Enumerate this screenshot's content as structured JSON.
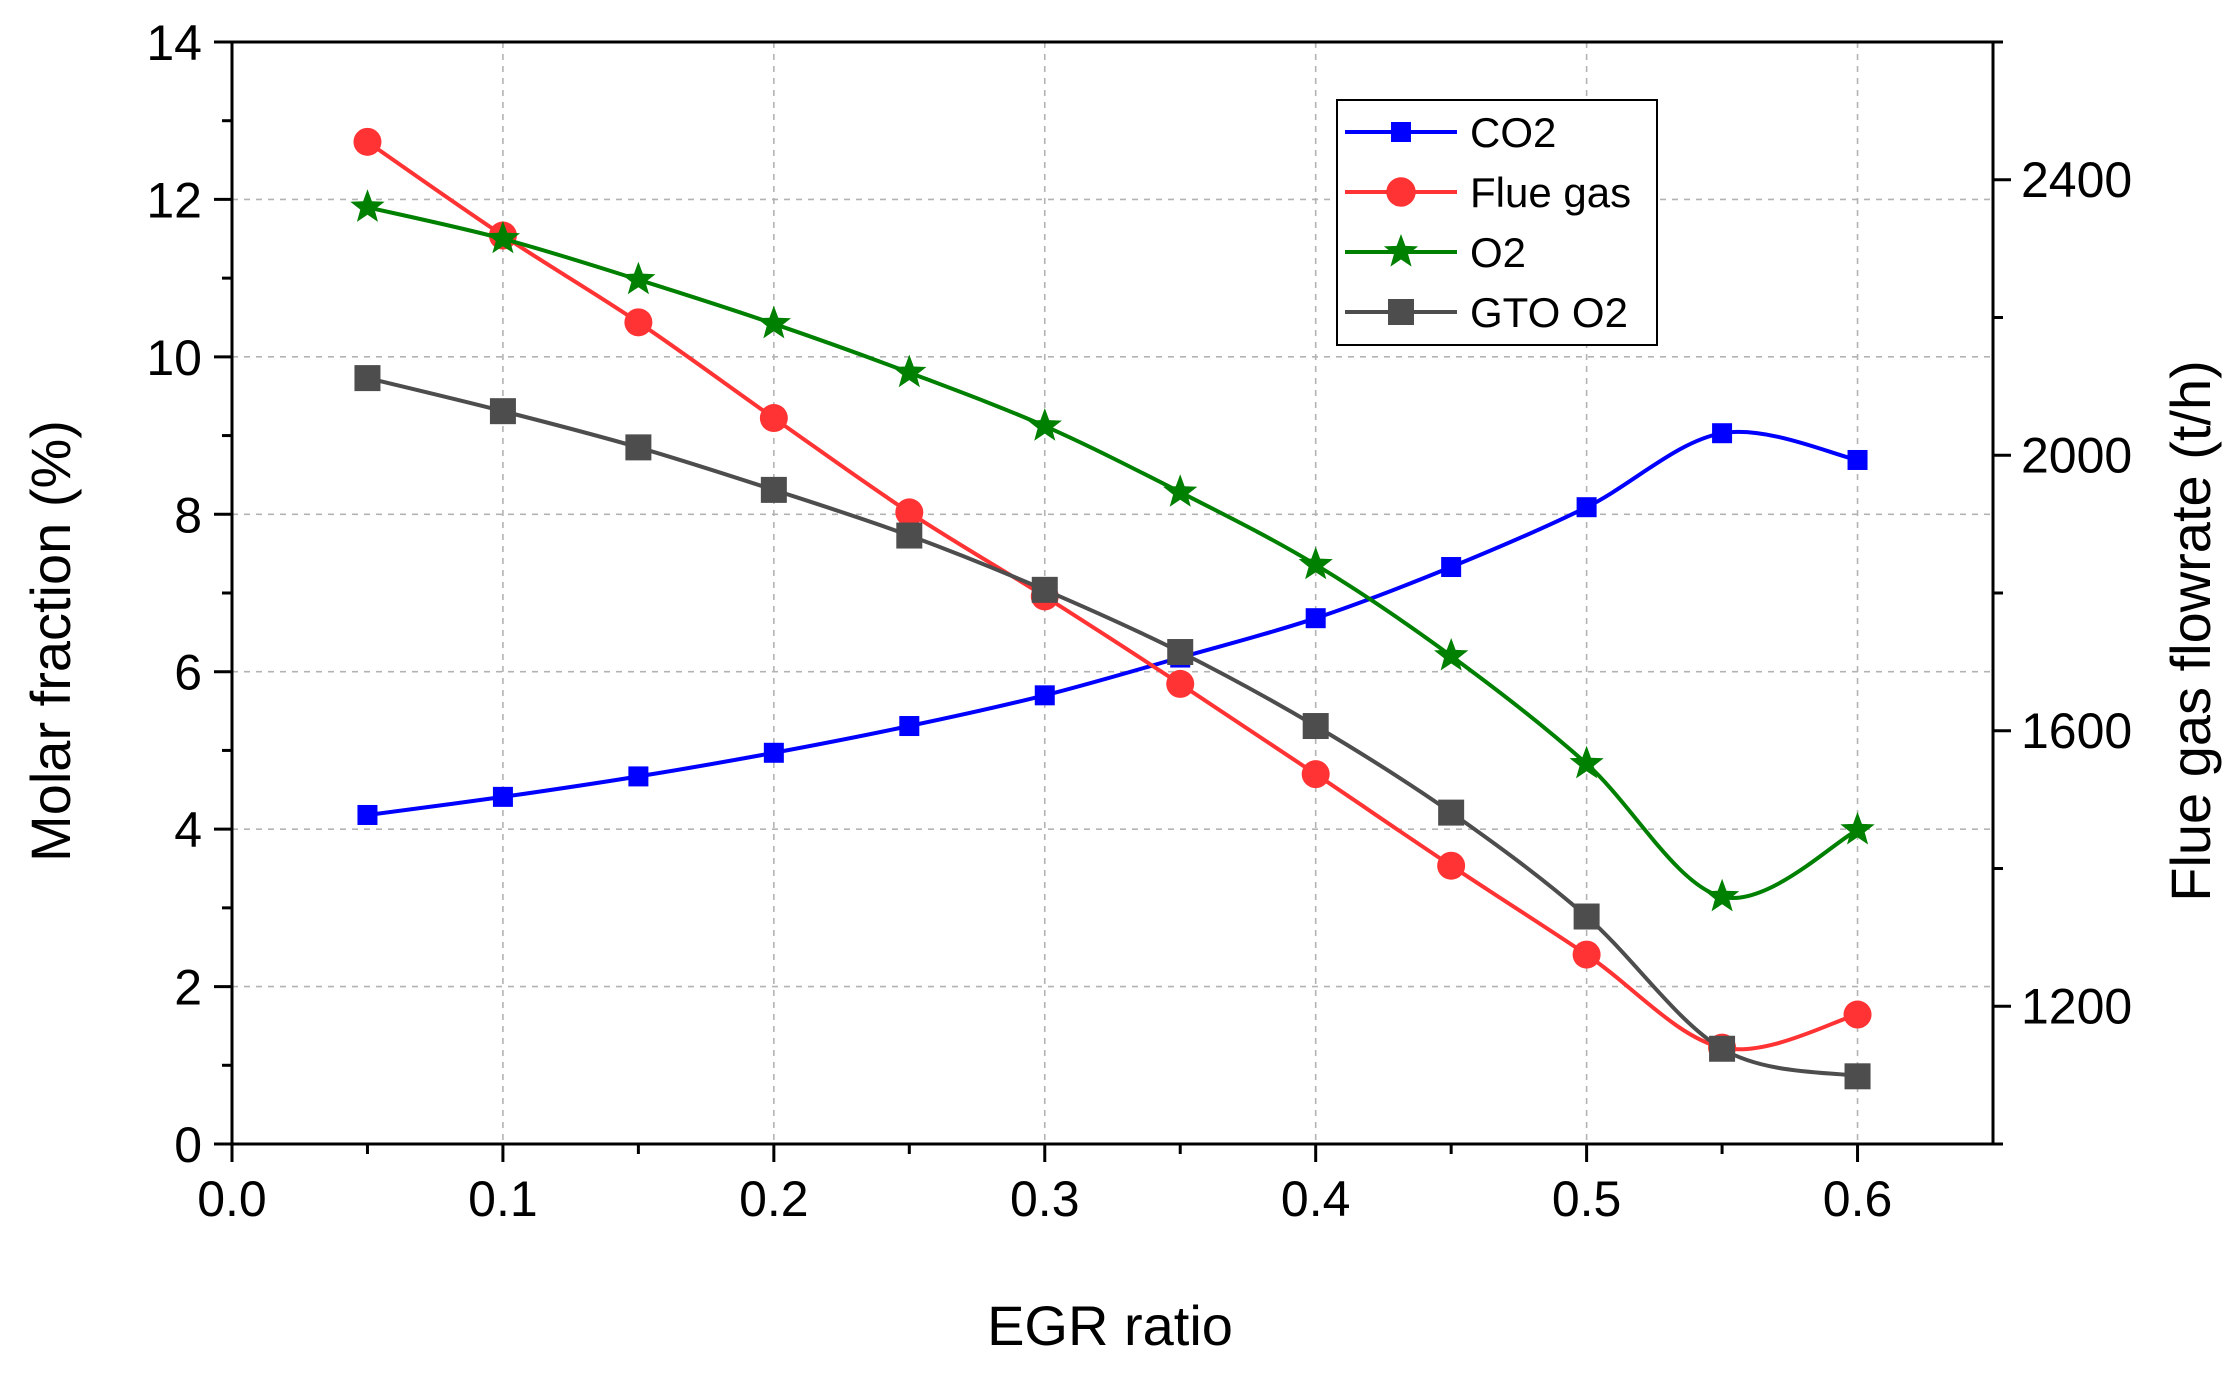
{
  "chart_data": {
    "type": "line",
    "xlabel": "EGR ratio",
    "ylabel": "Molar fraction (%)",
    "y2label": "Flue gas flowrate (t/h)",
    "xlim": [
      0.0,
      0.65
    ],
    "ylim": [
      0,
      14
    ],
    "y2lim": [
      1000,
      2600
    ],
    "grid": true,
    "legend_position": "top-right",
    "x_ticks": [
      0.0,
      0.1,
      0.2,
      0.3,
      0.4,
      0.5,
      0.6
    ],
    "x_tick_labels": [
      "0.0",
      "0.1",
      "0.2",
      "0.3",
      "0.4",
      "0.5",
      "0.6"
    ],
    "y_ticks": [
      0,
      2,
      4,
      6,
      8,
      10,
      12,
      14
    ],
    "y_tick_labels": [
      "0",
      "2",
      "4",
      "6",
      "8",
      "10",
      "12",
      "14"
    ],
    "y2_ticks": [
      1200,
      1600,
      2000,
      2400
    ],
    "y2_tick_labels": [
      "1200",
      "1600",
      "2000",
      "2400"
    ],
    "x": [
      0.05,
      0.1,
      0.15,
      0.2,
      0.25,
      0.3,
      0.35,
      0.4,
      0.45,
      0.5,
      0.55,
      0.6
    ],
    "series": [
      {
        "name": "CO2",
        "axis": "left",
        "marker": "small-square",
        "color": "#0000ff",
        "values": [
          4.18,
          4.41,
          4.67,
          4.97,
          5.31,
          5.7,
          6.18,
          6.68,
          7.33,
          8.09,
          9.03,
          8.69
        ]
      },
      {
        "name": "Flue gas",
        "axis": "right",
        "marker": "circle",
        "color": "#ff3333",
        "values": [
          2455,
          2319,
          2193,
          2054,
          1917,
          1795,
          1668,
          1537,
          1404,
          1275,
          1140,
          1188
        ]
      },
      {
        "name": "O2",
        "axis": "left",
        "marker": "star",
        "color": "#008000",
        "values": [
          11.9,
          11.5,
          10.98,
          10.42,
          9.8,
          9.12,
          8.28,
          7.36,
          6.2,
          4.83,
          3.14,
          3.99
        ]
      },
      {
        "name": "GTO O2",
        "axis": "left",
        "marker": "square",
        "color": "#4d4d4d",
        "values": [
          9.73,
          9.31,
          8.85,
          8.31,
          7.73,
          7.04,
          6.25,
          5.31,
          4.21,
          2.89,
          1.21,
          0.86
        ]
      }
    ]
  }
}
